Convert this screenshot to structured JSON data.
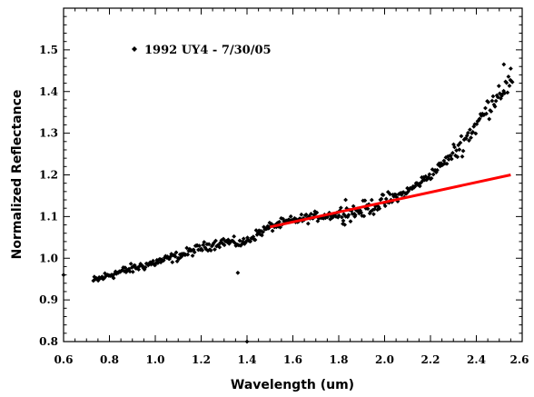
{
  "chart_data": {
    "type": "scatter",
    "title": "",
    "xlabel": "Wavelength (um)",
    "ylabel": "Normalized Reflectance",
    "xlim": [
      0.6,
      2.6
    ],
    "ylim": [
      0.8,
      1.6
    ],
    "x_ticks": [
      "0.6",
      "0.8",
      "1.0",
      "1.2",
      "1.4",
      "1.6",
      "1.8",
      "2.0",
      "2.2",
      "2.4",
      "2.6"
    ],
    "y_ticks": [
      "0.8",
      "0.9",
      "1.0",
      "1.1",
      "1.2",
      "1.3",
      "1.4",
      "1.5"
    ],
    "grid": false,
    "legend_position": "top-left",
    "series": [
      {
        "name": "1992 UY4 - 7/30/05",
        "marker": "diamond",
        "color": "#000000",
        "curve": [
          [
            0.73,
            0.945
          ],
          [
            0.8,
            0.96
          ],
          [
            0.9,
            0.975
          ],
          [
            1.0,
            0.99
          ],
          [
            1.1,
            1.005
          ],
          [
            1.2,
            1.025
          ],
          [
            1.3,
            1.04
          ],
          [
            1.38,
            1.035
          ],
          [
            1.45,
            1.06
          ],
          [
            1.5,
            1.075
          ],
          [
            1.6,
            1.09
          ],
          [
            1.7,
            1.1
          ],
          [
            1.8,
            1.105
          ],
          [
            1.9,
            1.115
          ],
          [
            2.0,
            1.135
          ],
          [
            2.1,
            1.16
          ],
          [
            2.2,
            1.2
          ],
          [
            2.3,
            1.25
          ],
          [
            2.4,
            1.32
          ],
          [
            2.45,
            1.36
          ],
          [
            2.5,
            1.4
          ],
          [
            2.56,
            1.42
          ]
        ],
        "outliers": [
          [
            0.6,
            0.96
          ],
          [
            1.4,
            0.8
          ],
          [
            1.36,
            0.965
          ],
          [
            1.83,
            1.14
          ],
          [
            1.87,
            1.1
          ],
          [
            1.82,
            1.09
          ],
          [
            2.52,
            1.465
          ],
          [
            2.55,
            1.455
          ]
        ]
      },
      {
        "name": "",
        "type": "line",
        "color": "#ff0000",
        "points": [
          [
            1.5,
            1.075
          ],
          [
            2.55,
            1.2
          ]
        ]
      }
    ]
  }
}
